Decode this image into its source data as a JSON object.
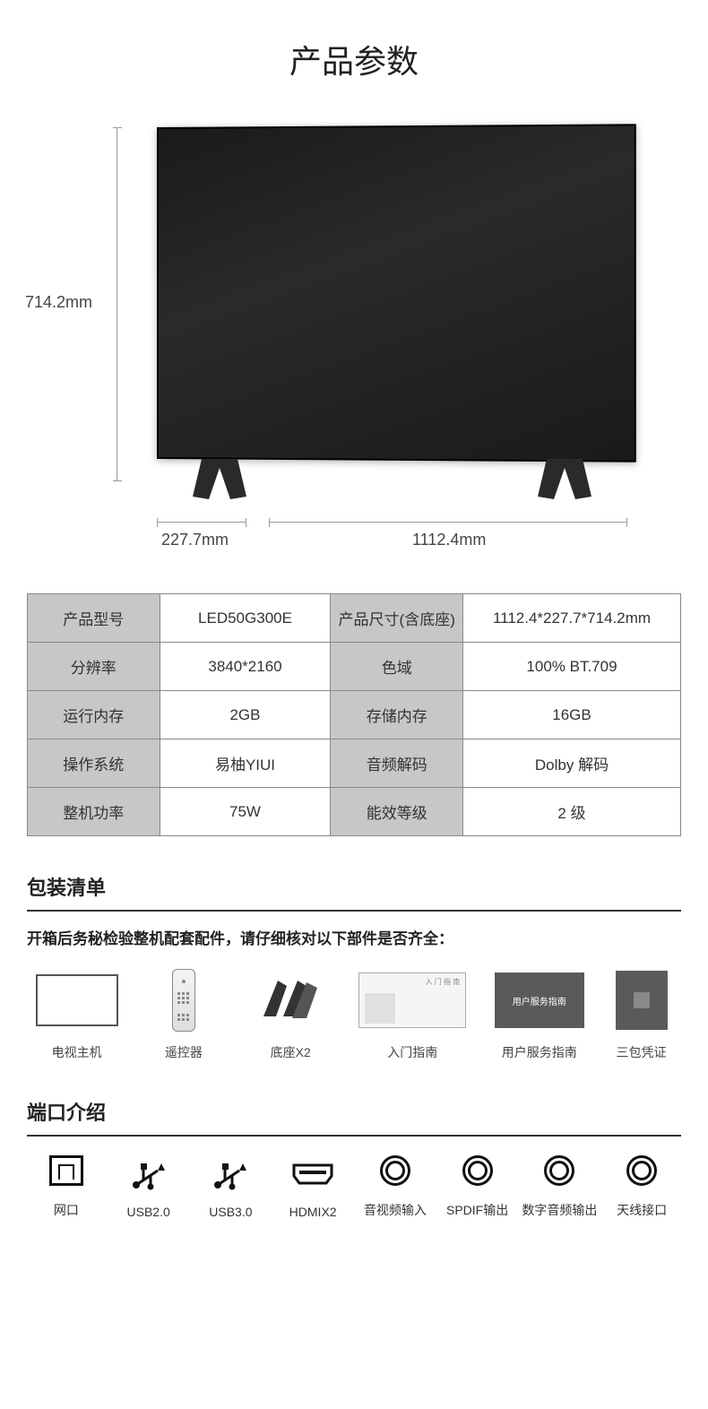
{
  "title": "产品参数",
  "dimensions": {
    "height": "714.2mm",
    "depth": "227.7mm",
    "width": "1112.4mm"
  },
  "specs": {
    "rows": [
      {
        "l1": "产品型号",
        "v1": "LED50G300E",
        "l2": "产品尺寸(含底座)",
        "v2": "1112.4*227.7*714.2mm"
      },
      {
        "l1": "分辨率",
        "v1": "3840*2160",
        "l2": "色域",
        "v2": "100% BT.709"
      },
      {
        "l1": "运行内存",
        "v1": "2GB",
        "l2": "存储内存",
        "v2": "16GB"
      },
      {
        "l1": "操作系统",
        "v1": "易柚YIUI",
        "l2": "音频解码",
        "v2": "Dolby 解码"
      },
      {
        "l1": "整机功率",
        "v1": "75W",
        "l2": "能效等级",
        "v2": "2 级"
      }
    ],
    "cell_bg_label": "#c7c7c7",
    "cell_bg_value": "#ffffff",
    "border_color": "#888888",
    "font_size_pt": 13
  },
  "package": {
    "heading": "包装清单",
    "subheading": "开箱后务秘检验整机配套配件，请仔细核对以下部件是否齐全：",
    "items": [
      {
        "label": "电视主机"
      },
      {
        "label": "遥控器"
      },
      {
        "label": "底座X2"
      },
      {
        "label": "入门指南",
        "inner": "入 门 指 南"
      },
      {
        "label": "用户服务指南",
        "inner": "用户服务指南"
      },
      {
        "label": "三包凭证"
      }
    ]
  },
  "ports": {
    "heading": "端口介绍",
    "items": [
      {
        "icon": "ethernet",
        "label": "网口"
      },
      {
        "icon": "usb",
        "label": "USB2.0"
      },
      {
        "icon": "usb",
        "label": "USB3.0"
      },
      {
        "icon": "hdmi",
        "label": "HDMIX2"
      },
      {
        "icon": "circle",
        "label": "音视频输入"
      },
      {
        "icon": "circle",
        "label": "SPDIF输出"
      },
      {
        "icon": "circle",
        "label": "数字音频输出"
      },
      {
        "icon": "circle",
        "label": "天线接口"
      }
    ]
  },
  "colors": {
    "background": "#ffffff",
    "text": "#333333",
    "heading": "#222222",
    "rule": "#333333",
    "tv_body": "#1a1a1a",
    "booklet_bg": "#f5f5f5",
    "card_bg": "#5a5a5a"
  }
}
